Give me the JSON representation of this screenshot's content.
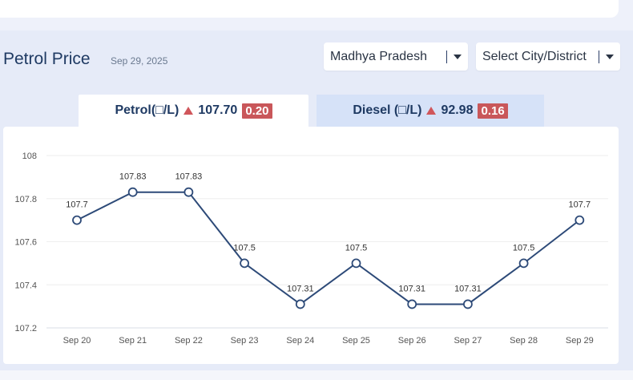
{
  "header": {
    "title": "Petrol Price",
    "date": "Sep 29, 2025"
  },
  "filters": {
    "state": "Madhya Pradesh",
    "city": "Select City/District"
  },
  "tabs": [
    {
      "name": "Petrol(□/L)",
      "price": "107.70",
      "change": "0.20",
      "active": true
    },
    {
      "name": "Diesel (□/L)",
      "price": "92.98",
      "change": "0.16",
      "active": false
    }
  ],
  "colors": {
    "line": "#2d4a78",
    "badge": "#c9575a",
    "arrow": "#d0565b",
    "title": "#1f3a63"
  },
  "chart_data": {
    "type": "line",
    "categories": [
      "Sep 20",
      "Sep 21",
      "Sep 22",
      "Sep 23",
      "Sep 24",
      "Sep 25",
      "Sep 26",
      "Sep 27",
      "Sep 28",
      "Sep 29"
    ],
    "values": [
      107.7,
      107.83,
      107.83,
      107.5,
      107.31,
      107.5,
      107.31,
      107.31,
      107.5,
      107.7
    ],
    "data_labels": [
      "107.7",
      "107.83",
      "107.83",
      "107.5",
      "107.31",
      "107.5",
      "107.31",
      "107.31",
      "107.5",
      "107.7"
    ],
    "ylim": [
      107.2,
      108
    ],
    "yticks": [
      "107.2",
      "107.4",
      "107.6",
      "107.8",
      "108"
    ],
    "grid": true
  }
}
